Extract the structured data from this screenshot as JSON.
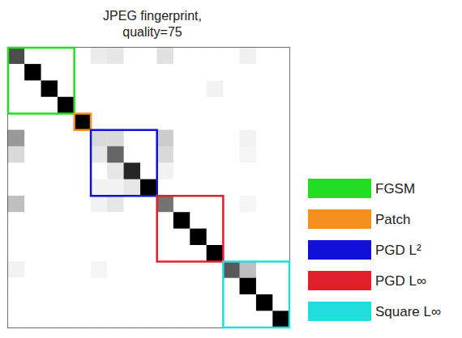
{
  "chart_data": {
    "type": "heatmap",
    "title": "JPEG fingerprint,\nquality=75",
    "tick_labels": false,
    "color_range": [
      0,
      1
    ],
    "cells": [
      [
        0.7,
        0,
        0,
        0,
        0,
        0.08,
        0.1,
        0,
        0,
        0.12,
        0,
        0,
        0,
        0,
        0.06,
        0,
        0
      ],
      [
        0,
        1,
        0,
        0,
        0,
        0,
        0,
        0,
        0,
        0,
        0,
        0,
        0,
        0,
        0,
        0,
        0
      ],
      [
        0,
        0,
        1,
        0,
        0,
        0,
        0,
        0,
        0,
        0,
        0,
        0,
        0.05,
        0,
        0,
        0,
        0
      ],
      [
        0,
        0,
        0,
        1,
        0,
        0,
        0,
        0,
        0,
        0,
        0,
        0,
        0,
        0,
        0,
        0,
        0
      ],
      [
        0,
        0,
        0,
        0,
        1,
        0,
        0,
        0,
        0,
        0,
        0,
        0,
        0,
        0,
        0,
        0,
        0
      ],
      [
        0.4,
        0,
        0,
        0,
        0,
        0.15,
        0.15,
        0,
        0,
        0.2,
        0,
        0,
        0,
        0,
        0.05,
        0,
        0
      ],
      [
        0.15,
        0,
        0,
        0,
        0,
        0.1,
        0.6,
        0,
        0,
        0.15,
        0,
        0,
        0,
        0,
        0.04,
        0,
        0
      ],
      [
        0,
        0,
        0,
        0,
        0,
        0,
        0.1,
        0.85,
        0,
        0.05,
        0,
        0,
        0,
        0,
        0,
        0,
        0
      ],
      [
        0,
        0,
        0,
        0,
        0,
        0.05,
        0.05,
        0.1,
        1,
        0,
        0,
        0,
        0,
        0,
        0,
        0,
        0
      ],
      [
        0.25,
        0,
        0,
        0,
        0,
        0.05,
        0.1,
        0,
        0,
        0.55,
        0,
        0,
        0,
        0,
        0.04,
        0,
        0
      ],
      [
        0,
        0,
        0,
        0,
        0,
        0,
        0,
        0,
        0,
        0,
        1,
        0,
        0,
        0,
        0,
        0,
        0
      ],
      [
        0,
        0,
        0,
        0,
        0,
        0,
        0,
        0,
        0,
        0,
        0,
        1,
        0,
        0,
        0,
        0,
        0
      ],
      [
        0,
        0,
        0,
        0,
        0,
        0,
        0,
        0,
        0,
        0,
        0,
        0,
        1,
        0,
        0,
        0,
        0
      ],
      [
        0.05,
        0,
        0,
        0,
        0,
        0.04,
        0,
        0,
        0,
        0,
        0,
        0,
        0,
        0.65,
        0.25,
        0,
        0
      ],
      [
        0,
        0,
        0,
        0,
        0,
        0,
        0,
        0,
        0,
        0,
        0,
        0,
        0,
        0,
        1,
        0,
        0
      ],
      [
        0,
        0,
        0,
        0,
        0,
        0,
        0,
        0,
        0,
        0,
        0,
        0,
        0,
        0,
        0,
        1,
        0
      ],
      [
        0,
        0,
        0,
        0,
        0,
        0,
        0,
        0,
        0,
        0,
        0,
        0,
        0,
        0,
        0,
        0,
        1
      ]
    ],
    "groups": [
      {
        "name": "FGSM",
        "color": "#22dd22",
        "start": 0,
        "end": 3
      },
      {
        "name": "Patch",
        "color": "#f5901e",
        "start": 4,
        "end": 4
      },
      {
        "name": "PGD L²",
        "color": "#1010d8",
        "start": 5,
        "end": 8
      },
      {
        "name": "PGD L∞",
        "color": "#e0202a",
        "start": 9,
        "end": 12
      },
      {
        "name": "Square L∞",
        "color": "#22dddd",
        "start": 13,
        "end": 16
      }
    ]
  }
}
